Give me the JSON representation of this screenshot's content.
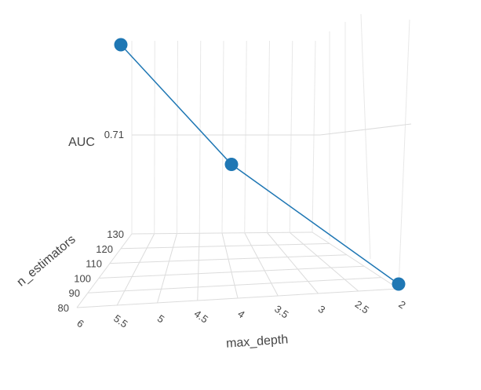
{
  "chart_data": {
    "type": "scatter3d",
    "mode": "lines+markers",
    "title": "",
    "axes": {
      "x": {
        "label": "max_depth",
        "ticks": [
          "2",
          "2.5",
          "3",
          "3.5",
          "4",
          "4.5",
          "5",
          "5.5",
          "6"
        ],
        "range": [
          2,
          6
        ]
      },
      "y": {
        "label": "n_estimators",
        "ticks": [
          "80",
          "90",
          "100",
          "110",
          "120",
          "130"
        ],
        "range": [
          80,
          130
        ]
      },
      "z": {
        "label": "AUC",
        "ticks": [
          "0.71"
        ]
      }
    },
    "series": [
      {
        "color": "#1f77b4",
        "points": [
          {
            "max_depth": 2,
            "n_estimators": 80,
            "AUC": 0.695
          },
          {
            "max_depth": 4,
            "n_estimators": 100,
            "AUC": 0.71
          },
          {
            "max_depth": 6,
            "n_estimators": 120,
            "AUC": 0.725
          }
        ]
      }
    ],
    "grid": true,
    "legend": "none"
  }
}
